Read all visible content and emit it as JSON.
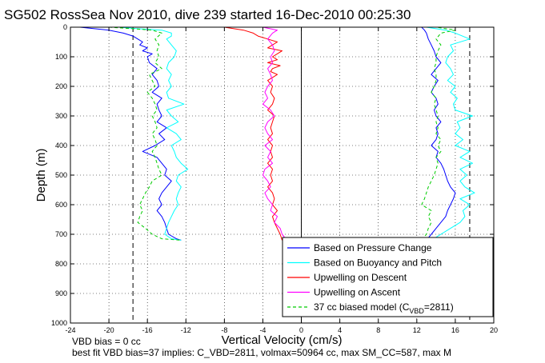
{
  "chart_data": {
    "type": "line",
    "title": "SG502 RossSea Nov 2010, dive 239 started 16-Dec-2010 00:25:30",
    "xlabel": "Vertical Velocity (cm/s)",
    "ylabel": "Depth (m)",
    "xlim": [
      -24,
      20
    ],
    "ylim": [
      0,
      1000
    ],
    "y_reversed": true,
    "grid": true,
    "xticks": [
      -24,
      -20,
      -16,
      -12,
      -8,
      -4,
      0,
      4,
      8,
      12,
      16,
      20
    ],
    "yticks": [
      0,
      100,
      200,
      300,
      400,
      500,
      600,
      700,
      800,
      900,
      1000
    ],
    "reference_lines": [
      {
        "x": -17.5,
        "style": "dashed",
        "color": "#000000"
      },
      {
        "x": 0,
        "style": "solid",
        "color": "#000000"
      },
      {
        "x": 17.5,
        "style": "dashed",
        "color": "#000000"
      }
    ],
    "legend_position": "bottom-right",
    "series": [
      {
        "name": "Based on Pressure Change",
        "color": "#0000ff",
        "style": "solid",
        "segments": [
          {
            "depth": [
              0,
              5,
              10,
              20,
              30,
              40,
              50,
              60,
              70,
              80,
              90,
              100,
              120,
              140,
              160,
              180,
              200,
              220,
              240,
              260,
              280,
              300,
              320,
              340,
              360,
              380,
              400,
              420,
              440,
              460,
              480,
              500,
              520,
              540,
              560,
              580,
              600,
              620,
              640,
              660,
              680,
              700,
              715,
              720
            ],
            "velocity": [
              -23,
              -21.5,
              -20,
              -18.5,
              -17.5,
              -17,
              -16.5,
              -16.8,
              -16,
              -16.5,
              -15.5,
              -16,
              -15.8,
              -15,
              -15.5,
              -15,
              -14.8,
              -15.5,
              -14.5,
              -15,
              -14.8,
              -14.5,
              -15,
              -14,
              -14.8,
              -14.2,
              -15.2,
              -16.5,
              -15,
              -14.5,
              -14,
              -14.2,
              -13.5,
              -14,
              -14.5,
              -14.8,
              -14.5,
              -15,
              -14.5,
              -14.2,
              -14,
              -13.8,
              -13,
              -12.5
            ]
          },
          {
            "depth": [
              720,
              700,
              680,
              660,
              640,
              620,
              600,
              580,
              560,
              540,
              520,
              500,
              480,
              460,
              440,
              420,
              400,
              380,
              360,
              340,
              320,
              300,
              280,
              260,
              240,
              220,
              200,
              180,
              160,
              140,
              120,
              100,
              80,
              60,
              40,
              20,
              10,
              0
            ],
            "velocity": [
              13,
              13.5,
              14,
              14.5,
              15,
              15.2,
              15.5,
              15.8,
              16,
              15.5,
              15.2,
              15,
              14.8,
              14.5,
              14,
              14.2,
              13.5,
              14,
              14.2,
              14,
              14.5,
              14,
              13.8,
              14.2,
              14,
              13.5,
              13.8,
              14.2,
              13.5,
              14,
              14.5,
              14,
              13.8,
              13.5,
              13.2,
              13,
              12.8,
              12.5
            ]
          }
        ]
      },
      {
        "name": "Based on Buoyancy and Pitch",
        "color": "#00ffff",
        "style": "solid",
        "segments": [
          {
            "depth": [
              0,
              5,
              10,
              20,
              30,
              40,
              60,
              80,
              100,
              120,
              140,
              160,
              180,
              200,
              220,
              240,
              260,
              280,
              300,
              320,
              340,
              360,
              380,
              400,
              420,
              440,
              460,
              480,
              500,
              520,
              540,
              560,
              580,
              600,
              620,
              640,
              660,
              680,
              700,
              715,
              720
            ],
            "velocity": [
              -19,
              -17,
              -14.5,
              -13.5,
              -13.5,
              -14,
              -13.5,
              -13,
              -13.2,
              -13.8,
              -14,
              -13.5,
              -13.8,
              -13.5,
              -14,
              -13.8,
              -12.2,
              -14,
              -13.5,
              -12.8,
              -14,
              -13,
              -12.5,
              -13.5,
              -13.2,
              -13,
              -12.5,
              -11.8,
              -12.8,
              -13,
              -12.5,
              -12.8,
              -13,
              -12.8,
              -13.2,
              -13.5,
              -13.8,
              -14,
              -14.2,
              -13.5,
              -12.5
            ]
          },
          {
            "depth": [
              720,
              700,
              680,
              660,
              640,
              620,
              600,
              580,
              560,
              540,
              520,
              500,
              480,
              460,
              440,
              420,
              400,
              380,
              360,
              340,
              320,
              300,
              280,
              260,
              240,
              220,
              200,
              180,
              160,
              140,
              120,
              100,
              80,
              60,
              40,
              20,
              10,
              0
            ],
            "velocity": [
              13.5,
              14.5,
              15.5,
              16.5,
              17,
              16.8,
              17.5,
              16.5,
              18,
              17,
              16.5,
              17.2,
              16.5,
              17.8,
              16.5,
              17.5,
              16,
              16.8,
              16,
              16.5,
              16.2,
              17.8,
              16,
              15.8,
              16.2,
              15.5,
              16,
              15.2,
              15.8,
              15.5,
              15,
              15.2,
              15.8,
              15.5,
              17.5,
              16,
              15,
              13
            ]
          }
        ]
      },
      {
        "name": "Upwelling on Descent",
        "color": "#ff0000",
        "style": "solid",
        "segments": [
          {
            "depth": [
              0,
              10,
              20,
              30,
              40,
              50,
              60,
              70,
              80,
              90,
              100,
              110,
              120,
              130,
              140,
              150,
              160,
              170,
              180,
              200,
              220,
              240,
              260,
              280,
              300,
              320,
              340,
              360,
              380,
              400,
              420,
              440,
              460,
              480,
              500,
              520,
              540,
              560,
              580,
              600,
              620,
              640,
              660,
              680,
              700,
              720
            ],
            "velocity": [
              -8,
              -6,
              -5,
              -4.5,
              -3.5,
              -2.5,
              -3,
              -3.5,
              -2,
              -2.5,
              -3,
              -2.5,
              -3.5,
              -2.2,
              -3,
              -3.2,
              -2.5,
              -3,
              -3.5,
              -3,
              -3.2,
              -2.8,
              -3,
              -3.5,
              -2.8,
              -3,
              -3.2,
              -3,
              -3.5,
              -3,
              -3.2,
              -3,
              -3.5,
              -3,
              -3.2,
              -3,
              -3.5,
              -3,
              -2.8,
              -3,
              -2.5,
              -3,
              -2.8,
              -2.5,
              -2.2,
              -2
            ]
          }
        ]
      },
      {
        "name": "Upwelling on Ascent",
        "color": "#ff00ff",
        "style": "solid",
        "segments": [
          {
            "depth": [
              0,
              10,
              20,
              40,
              60,
              80,
              100,
              120,
              140,
              160,
              180,
              200,
              220,
              240,
              260,
              280,
              300,
              320,
              340,
              360,
              380,
              400,
              420,
              440,
              460,
              480,
              500,
              520,
              540,
              560,
              580,
              600,
              620,
              640,
              660,
              680,
              700,
              720
            ],
            "velocity": [
              -4,
              -2.5,
              -3,
              -3.5,
              -3,
              -2.8,
              -3.2,
              -3,
              -3.5,
              -3.2,
              -3,
              -3.5,
              -3.8,
              -3.5,
              -4,
              -3.2,
              -2.8,
              -3.5,
              -3.8,
              -3.5,
              -3,
              -3.8,
              -3.2,
              -3.5,
              -3,
              -3.8,
              -4,
              -3.5,
              -3.2,
              -3.8,
              -3.5,
              -3,
              -3.2,
              -2.5,
              -2.8,
              -2.2,
              -2,
              -1.5
            ]
          }
        ]
      },
      {
        "name": "37 cc biased model (C_VBD=2811)",
        "color": "#00cc00",
        "style": "dashed",
        "segments": [
          {
            "depth": [
              0,
              5,
              10,
              20,
              40,
              60,
              80,
              100,
              120,
              140,
              160,
              180,
              200,
              220,
              240,
              260,
              280,
              300,
              320,
              340,
              360,
              380,
              400,
              420,
              440,
              460,
              480,
              500,
              520,
              540,
              560,
              580,
              600,
              620,
              640,
              660,
              680,
              700,
              715,
              720
            ],
            "velocity": [
              -20,
              -17.5,
              -15.5,
              -14.5,
              -15.2,
              -14.8,
              -15,
              -14.8,
              -15.2,
              -14.5,
              -15.8,
              -15.5,
              -15.2,
              -16,
              -15.5,
              -15.2,
              -15,
              -15.5,
              -15.2,
              -15,
              -15.5,
              -15.2,
              -15,
              -15.5,
              -15.2,
              -15,
              -14.8,
              -14.5,
              -15.5,
              -15.8,
              -16.2,
              -16.5,
              -16.8,
              -16.5,
              -16.8,
              -17,
              -16.2,
              -15.5,
              -14.5,
              -12.5
            ]
          },
          {
            "depth": [
              720,
              700,
              680,
              660,
              640,
              620,
              600,
              580,
              560,
              540,
              520,
              500,
              480,
              460,
              440,
              420,
              400,
              380,
              360,
              340,
              320,
              300,
              280,
              260,
              240,
              220,
              200,
              180,
              160,
              140,
              120,
              100,
              80,
              60,
              40,
              20,
              10,
              0
            ],
            "velocity": [
              12.5,
              13,
              13.2,
              13.5,
              13.2,
              13.5,
              12.5,
              12.8,
              13,
              13.2,
              13.5,
              13.8,
              14,
              14.2,
              14,
              14.5,
              14.2,
              14.5,
              14,
              14.2,
              14,
              14.2,
              14,
              13.8,
              14,
              13.5,
              13.8,
              14,
              14,
              13.8,
              14,
              14,
              14.2,
              14.5,
              14,
              14.5,
              16,
              14
            ]
          }
        ]
      }
    ]
  },
  "legend": {
    "items": [
      {
        "label": "Based on Pressure Change",
        "color": "#0000ff",
        "dashed": false
      },
      {
        "label": "Based on Buoyancy and Pitch",
        "color": "#00ffff",
        "dashed": false
      },
      {
        "label": "Upwelling on Descent",
        "color": "#ff0000",
        "dashed": false
      },
      {
        "label": "Upwelling on Ascent",
        "color": "#ff00ff",
        "dashed": false
      },
      {
        "label_main": "37 cc biased model (C",
        "label_sub": "VBD",
        "label_tail": "=2811)",
        "color": "#00cc00",
        "dashed": true
      }
    ]
  },
  "footer": {
    "line1": "VBD bias = 0 cc",
    "line2": "best fit VBD bias=37 implies: C_VBD=2811, volmax=50964 cc, max SM_CC=587, max M"
  }
}
